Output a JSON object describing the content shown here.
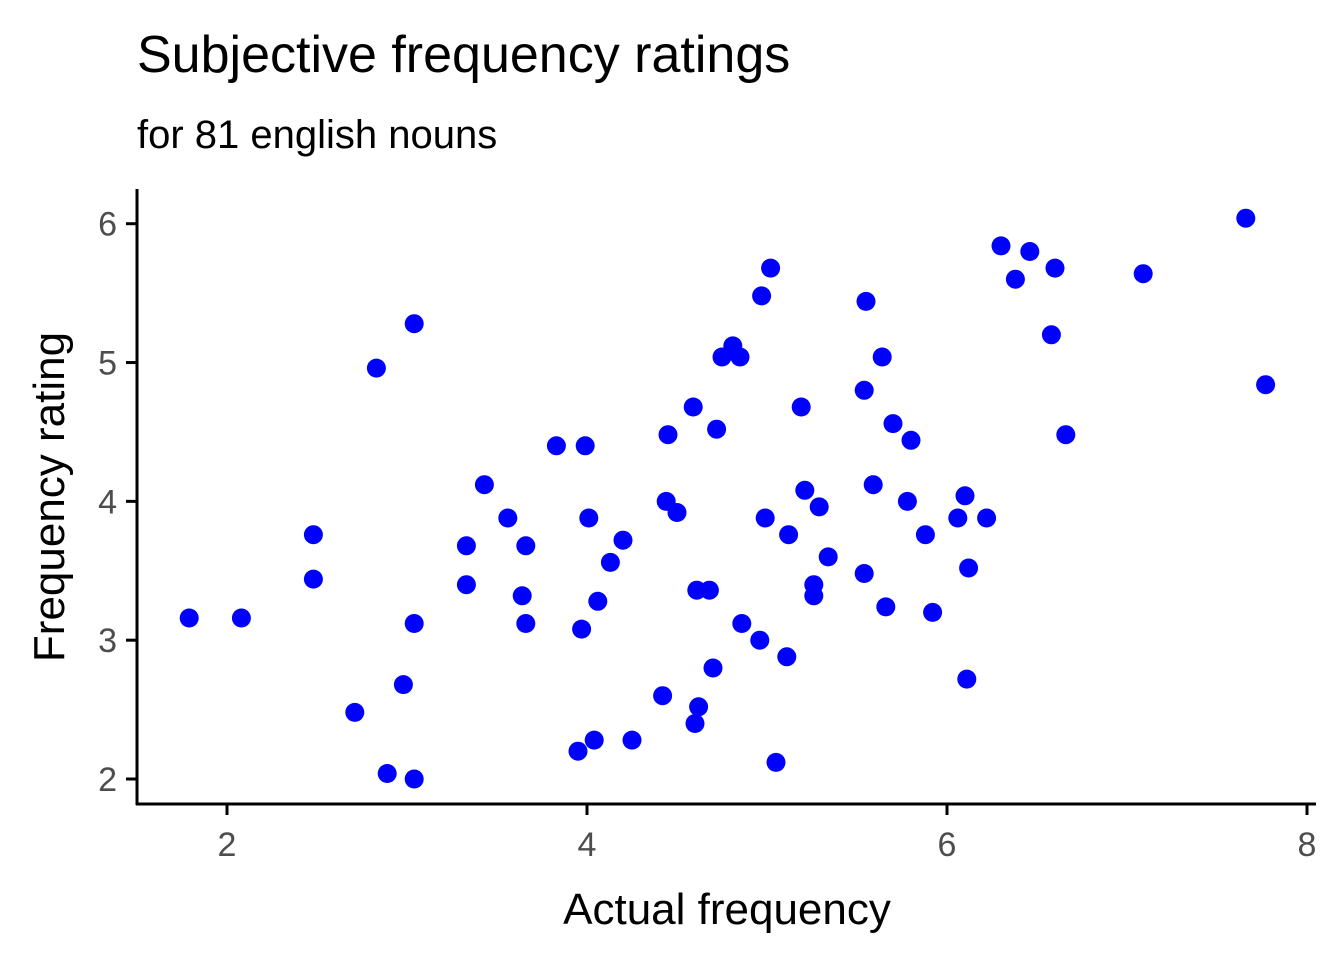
{
  "chart_data": {
    "type": "scatter",
    "title": "Subjective frequency ratings",
    "subtitle": "for 81 english nouns",
    "xlabel": "Actual frequency",
    "ylabel": "Frequency rating",
    "xlim": [
      1.5,
      8.05
    ],
    "ylim": [
      1.82,
      6.25
    ],
    "x_ticks": [
      2,
      4,
      6,
      8
    ],
    "y_ticks": [
      2,
      3,
      4,
      5,
      6
    ],
    "grid": false,
    "point_color": "#0000ff",
    "points": [
      {
        "x": 1.79,
        "y": 3.16
      },
      {
        "x": 2.08,
        "y": 3.16
      },
      {
        "x": 2.48,
        "y": 3.76
      },
      {
        "x": 2.48,
        "y": 3.44
      },
      {
        "x": 2.71,
        "y": 2.48
      },
      {
        "x": 2.83,
        "y": 4.96
      },
      {
        "x": 2.89,
        "y": 2.04
      },
      {
        "x": 2.98,
        "y": 2.68
      },
      {
        "x": 3.04,
        "y": 5.28
      },
      {
        "x": 3.04,
        "y": 3.12
      },
      {
        "x": 3.04,
        "y": 2.0
      },
      {
        "x": 3.33,
        "y": 3.68
      },
      {
        "x": 3.33,
        "y": 3.4
      },
      {
        "x": 3.43,
        "y": 4.12
      },
      {
        "x": 3.56,
        "y": 3.88
      },
      {
        "x": 3.64,
        "y": 3.32
      },
      {
        "x": 3.66,
        "y": 3.68
      },
      {
        "x": 3.66,
        "y": 3.12
      },
      {
        "x": 3.83,
        "y": 4.4
      },
      {
        "x": 3.95,
        "y": 2.2
      },
      {
        "x": 3.97,
        "y": 3.08
      },
      {
        "x": 3.99,
        "y": 4.4
      },
      {
        "x": 4.01,
        "y": 3.88
      },
      {
        "x": 4.04,
        "y": 2.28
      },
      {
        "x": 4.06,
        "y": 3.28
      },
      {
        "x": 4.13,
        "y": 3.56
      },
      {
        "x": 4.2,
        "y": 3.72
      },
      {
        "x": 4.25,
        "y": 2.28
      },
      {
        "x": 4.42,
        "y": 2.6
      },
      {
        "x": 4.44,
        "y": 4.0
      },
      {
        "x": 4.45,
        "y": 4.48
      },
      {
        "x": 4.5,
        "y": 3.92
      },
      {
        "x": 4.59,
        "y": 4.68
      },
      {
        "x": 4.6,
        "y": 2.4
      },
      {
        "x": 4.61,
        "y": 3.36
      },
      {
        "x": 4.62,
        "y": 2.52
      },
      {
        "x": 4.68,
        "y": 3.36
      },
      {
        "x": 4.7,
        "y": 2.8
      },
      {
        "x": 4.72,
        "y": 4.52
      },
      {
        "x": 4.75,
        "y": 5.04
      },
      {
        "x": 4.81,
        "y": 5.12
      },
      {
        "x": 4.85,
        "y": 5.04
      },
      {
        "x": 4.86,
        "y": 3.12
      },
      {
        "x": 4.96,
        "y": 3.0
      },
      {
        "x": 4.97,
        "y": 5.48
      },
      {
        "x": 4.99,
        "y": 3.88
      },
      {
        "x": 5.02,
        "y": 5.68
      },
      {
        "x": 5.05,
        "y": 2.12
      },
      {
        "x": 5.11,
        "y": 2.88
      },
      {
        "x": 5.12,
        "y": 3.76
      },
      {
        "x": 5.19,
        "y": 4.68
      },
      {
        "x": 5.21,
        "y": 4.08
      },
      {
        "x": 5.26,
        "y": 3.4
      },
      {
        "x": 5.26,
        "y": 3.32
      },
      {
        "x": 5.29,
        "y": 3.96
      },
      {
        "x": 5.34,
        "y": 3.6
      },
      {
        "x": 5.54,
        "y": 4.8
      },
      {
        "x": 5.54,
        "y": 3.48
      },
      {
        "x": 5.55,
        "y": 5.44
      },
      {
        "x": 5.59,
        "y": 4.12
      },
      {
        "x": 5.64,
        "y": 5.04
      },
      {
        "x": 5.66,
        "y": 3.24
      },
      {
        "x": 5.7,
        "y": 4.56
      },
      {
        "x": 5.78,
        "y": 4.0
      },
      {
        "x": 5.8,
        "y": 4.44
      },
      {
        "x": 5.88,
        "y": 3.76
      },
      {
        "x": 5.92,
        "y": 3.2
      },
      {
        "x": 6.06,
        "y": 3.88
      },
      {
        "x": 6.1,
        "y": 4.04
      },
      {
        "x": 6.11,
        "y": 2.72
      },
      {
        "x": 6.12,
        "y": 3.52
      },
      {
        "x": 6.22,
        "y": 3.88
      },
      {
        "x": 6.3,
        "y": 5.84
      },
      {
        "x": 6.38,
        "y": 5.6
      },
      {
        "x": 6.46,
        "y": 5.8
      },
      {
        "x": 6.58,
        "y": 5.2
      },
      {
        "x": 6.6,
        "y": 5.68
      },
      {
        "x": 6.66,
        "y": 4.48
      },
      {
        "x": 7.09,
        "y": 5.64
      },
      {
        "x": 7.66,
        "y": 6.04
      },
      {
        "x": 7.77,
        "y": 4.84
      }
    ]
  }
}
